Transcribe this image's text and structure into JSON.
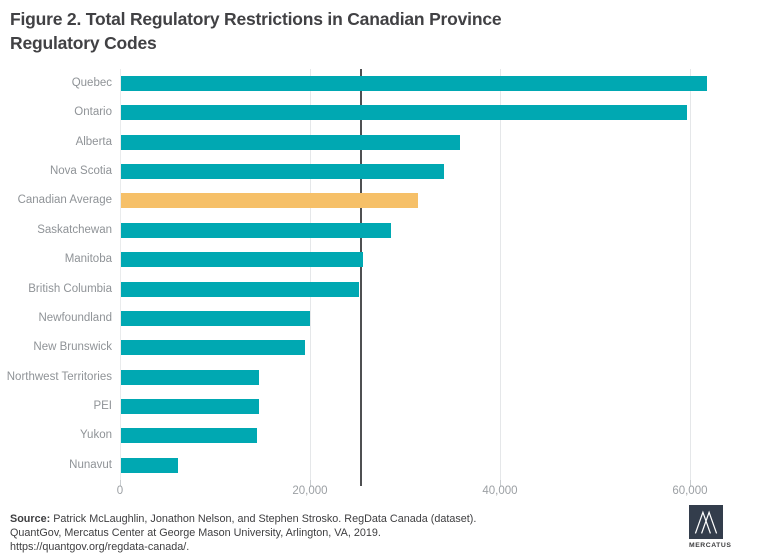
{
  "title": {
    "line1": "Figure 2. Total Regulatory Restrictions in Canadian Province",
    "line2": "Regulatory Codes",
    "full": "Figure 2. Total Regulatory Restrictions in Canadian Province Regulatory Codes"
  },
  "chart_data": {
    "type": "bar",
    "orientation": "horizontal",
    "title": "Figure 2. Total Regulatory Restrictions in Canadian Province Regulatory Codes",
    "categories": [
      "Quebec",
      "Ontario",
      "Alberta",
      "Nova Scotia",
      "Canadian Average",
      "Saskatchewan",
      "Manitoba",
      "British Columbia",
      "Newfoundland",
      "New Brunswick",
      "Northwest Territories",
      "PEI",
      "Yukon",
      "Nunavut"
    ],
    "values": [
      61700,
      59600,
      35700,
      34000,
      31300,
      28400,
      25500,
      25100,
      19900,
      19400,
      14550,
      14500,
      14300,
      6000
    ],
    "highlight_category": "Canadian Average",
    "highlight_index": 4,
    "bar_color": "#00a8b2",
    "highlight_color": "#f6c068",
    "xticks": [
      0,
      20000,
      40000,
      60000
    ],
    "xtick_labels": [
      "0",
      "20,000",
      "40,000",
      "60,000"
    ],
    "xlim": [
      0,
      65800
    ],
    "reference_line_value": 25300,
    "reference_line_color": "#4f5052",
    "grid": "vertical-only",
    "legend": "none",
    "xlabel": "",
    "ylabel": ""
  },
  "source": {
    "label": "Source:",
    "line1": "Patrick McLaughlin, Jonathon Nelson, and Stephen Strosko. RegData Canada (dataset).",
    "line2": "QuantGov, Mercatus Center at George Mason University, Arlington, VA, 2019.",
    "line3": "https://quantgov.org/regdata-canada/."
  },
  "logo": {
    "name": "Mercatus Center logo",
    "word": "MERCATUS"
  }
}
